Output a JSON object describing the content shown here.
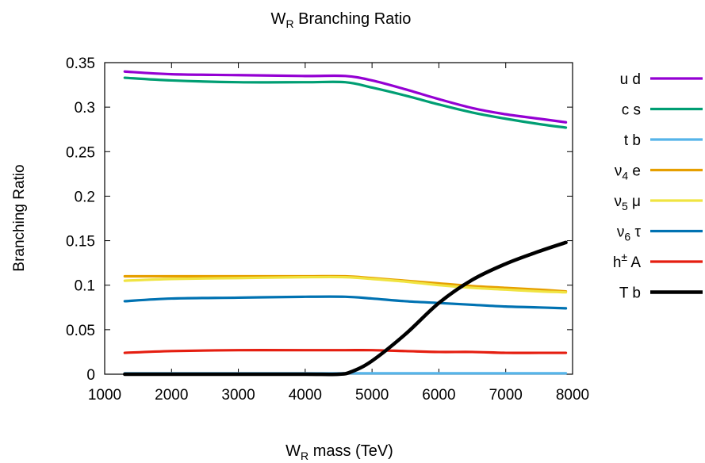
{
  "chart_data": {
    "type": "line",
    "title": {
      "main": "W",
      "sub": "R",
      "rest": " Branching Ratio"
    },
    "xlabel": {
      "main": "W",
      "sub": "R",
      "rest": " mass (TeV)"
    },
    "ylabel": "Branching Ratio",
    "xlim": [
      1000,
      8000
    ],
    "ylim": [
      0,
      0.35
    ],
    "xticks": [
      1000,
      2000,
      3000,
      4000,
      5000,
      6000,
      7000,
      8000
    ],
    "yticks": [
      0,
      0.05,
      0.1,
      0.15,
      0.2,
      0.25,
      0.3,
      0.35
    ],
    "ytick_labels": [
      "0",
      "0.05",
      "0.1",
      "0.15",
      "0.2",
      "0.25",
      "0.3",
      "0.35"
    ],
    "grid": false,
    "legend_position": "right",
    "series": [
      {
        "name": "u d",
        "label_parts": [
          {
            "t": "u d"
          }
        ],
        "color": "#9400d3",
        "x": [
          1300,
          2000,
          3000,
          4000,
          4600,
          5000,
          5500,
          6000,
          6500,
          7000,
          7500,
          7900
        ],
        "y": [
          0.34,
          0.337,
          0.336,
          0.335,
          0.335,
          0.33,
          0.32,
          0.309,
          0.299,
          0.292,
          0.287,
          0.283
        ]
      },
      {
        "name": "c s",
        "label_parts": [
          {
            "t": "c s"
          }
        ],
        "color": "#009e73",
        "x": [
          1300,
          2000,
          3000,
          4000,
          4600,
          5000,
          5500,
          6000,
          6500,
          7000,
          7500,
          7900
        ],
        "y": [
          0.333,
          0.33,
          0.328,
          0.328,
          0.328,
          0.322,
          0.313,
          0.303,
          0.294,
          0.287,
          0.281,
          0.277
        ]
      },
      {
        "name": "t b",
        "label_parts": [
          {
            "t": "t b"
          }
        ],
        "color": "#56b4e9",
        "x": [
          1300,
          2000,
          3000,
          4000,
          5000,
          6000,
          7000,
          7900
        ],
        "y": [
          0.001,
          0.001,
          0.001,
          0.001,
          0.001,
          0.001,
          0.001,
          0.001
        ]
      },
      {
        "name": "ν4 e",
        "label_parts": [
          {
            "t": "ν"
          },
          {
            "sub": "4"
          },
          {
            "t": " e"
          }
        ],
        "color": "#e69f00",
        "x": [
          1300,
          2000,
          3000,
          4000,
          4600,
          5000,
          5500,
          6000,
          6500,
          7000,
          7500,
          7900
        ],
        "y": [
          0.11,
          0.11,
          0.11,
          0.11,
          0.11,
          0.108,
          0.105,
          0.102,
          0.099,
          0.097,
          0.095,
          0.093
        ]
      },
      {
        "name": "ν5 μ",
        "label_parts": [
          {
            "t": "ν"
          },
          {
            "sub": "5"
          },
          {
            "t": " μ"
          }
        ],
        "color": "#f0e442",
        "x": [
          1300,
          2000,
          3000,
          4000,
          4600,
          5000,
          5500,
          6000,
          6500,
          7000,
          7500,
          7900
        ],
        "y": [
          0.105,
          0.107,
          0.108,
          0.109,
          0.109,
          0.107,
          0.104,
          0.1,
          0.097,
          0.095,
          0.093,
          0.092
        ]
      },
      {
        "name": "ν6 τ",
        "label_parts": [
          {
            "t": "ν"
          },
          {
            "sub": "6"
          },
          {
            "t": " τ"
          }
        ],
        "color": "#0072b2",
        "x": [
          1300,
          2000,
          3000,
          4000,
          4600,
          5000,
          5500,
          6000,
          6500,
          7000,
          7500,
          7900
        ],
        "y": [
          0.082,
          0.085,
          0.086,
          0.087,
          0.087,
          0.085,
          0.082,
          0.08,
          0.078,
          0.076,
          0.075,
          0.074
        ]
      },
      {
        "name": "h± A",
        "label_parts": [
          {
            "t": "h"
          },
          {
            "sup": "±"
          },
          {
            "t": " A"
          }
        ],
        "color": "#e51e10",
        "x": [
          1300,
          2000,
          3000,
          4000,
          4600,
          5000,
          5500,
          6000,
          6500,
          7000,
          7500,
          7900
        ],
        "y": [
          0.024,
          0.026,
          0.027,
          0.027,
          0.027,
          0.027,
          0.026,
          0.025,
          0.025,
          0.024,
          0.024,
          0.024
        ]
      },
      {
        "name": "T b",
        "label_parts": [
          {
            "t": "T b"
          }
        ],
        "color": "#000000",
        "x": [
          1300,
          2000,
          3000,
          4000,
          4500,
          4700,
          5000,
          5500,
          6000,
          6500,
          7000,
          7500,
          7900
        ],
        "y": [
          0.0,
          0.0,
          0.0,
          0.0,
          0.0,
          0.003,
          0.015,
          0.045,
          0.08,
          0.106,
          0.124,
          0.138,
          0.148
        ]
      }
    ]
  }
}
